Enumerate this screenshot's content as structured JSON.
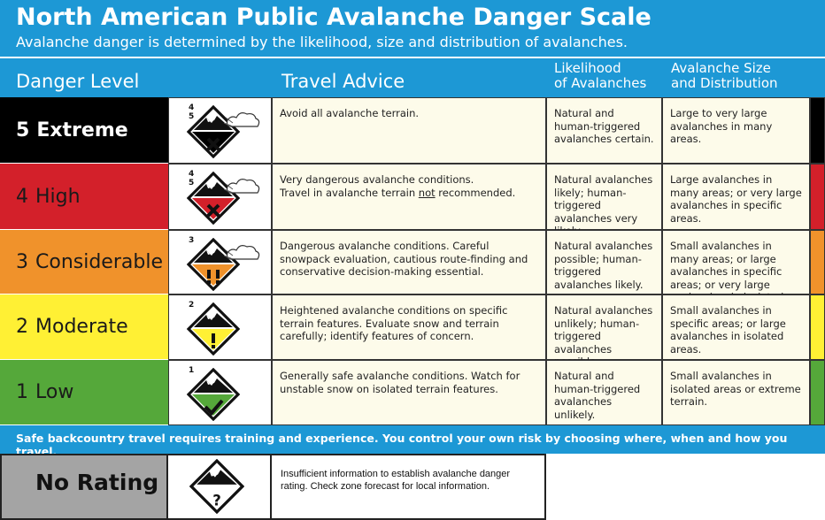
{
  "header": {
    "title": "North American Public Avalanche Danger Scale",
    "subtitle": "Avalanche danger is determined by the likelihood, size and distribution of avalanches."
  },
  "columns": {
    "level": "Danger Level",
    "advice": "Travel Advice",
    "likelihood": [
      "Likelihood",
      "of Avalanches"
    ],
    "size": [
      "Avalanche Size",
      "and Distribution"
    ]
  },
  "rows": [
    {
      "number": "5",
      "name": "Extreme",
      "color": "#000000",
      "text_color": "#ffffff",
      "icon_levels": [
        "4",
        "5"
      ],
      "symbol": "x",
      "advice": [
        "Avoid all avalanche terrain."
      ],
      "likelihood": "Natural and human-triggered avalanches certain.",
      "size": "Large to very large avalanches in many areas."
    },
    {
      "number": "4",
      "name": "High",
      "color": "#d3202a",
      "text_color": "#1a1a1a",
      "icon_levels": [
        "4",
        "5"
      ],
      "symbol": "x",
      "advice": [
        "Very dangerous avalanche conditions.",
        "Travel in avalanche terrain ",
        "not",
        " recommended."
      ],
      "likelihood": "Natural avalanches likely; human-triggered avalanches very likely.",
      "size": "Large avalanches in many areas; or very large avalanches in specific areas."
    },
    {
      "number": "3",
      "name": "Considerable",
      "color": "#f0922b",
      "text_color": "#1a1a1a",
      "icon_levels": [
        "3"
      ],
      "symbol": "!!",
      "advice": [
        "Dangerous avalanche conditions. Careful snowpack evaluation, cautious route-finding and conservative decision-making essential."
      ],
      "likelihood": "Natural avalanches possible; human-triggered avalanches likely.",
      "size": "Small avalanches in many areas; or large avalanches in specific areas; or very large avalanches in isolated areas."
    },
    {
      "number": "2",
      "name": "Moderate",
      "color": "#fff034",
      "text_color": "#1a1a1a",
      "icon_levels": [
        "2"
      ],
      "symbol": "!",
      "advice": [
        "Heightened avalanche conditions on specific terrain features. Evaluate snow and terrain carefully; identify features of concern."
      ],
      "likelihood": "Natural avalanches unlikely; human-triggered avalanches possible.",
      "size": "Small avalanches in specific areas; or large avalanches in isolated areas."
    },
    {
      "number": "1",
      "name": "Low",
      "color": "#55a83a",
      "text_color": "#1a1a1a",
      "icon_levels": [
        "1"
      ],
      "symbol": "check",
      "advice": [
        "Generally safe avalanche conditions. Watch for unstable snow on isolated terrain features."
      ],
      "likelihood": "Natural and human-triggered avalanches unlikely.",
      "size": "Small avalanches in isolated areas or extreme terrain."
    }
  ],
  "footer": "Safe backcountry travel requires training and experience. You control your own risk by choosing where, when and how you travel.",
  "no_rating": {
    "name": "No Rating",
    "symbol": "?",
    "advice": "Insufficient information to establish avalanche danger rating. Check zone forecast for local information."
  }
}
